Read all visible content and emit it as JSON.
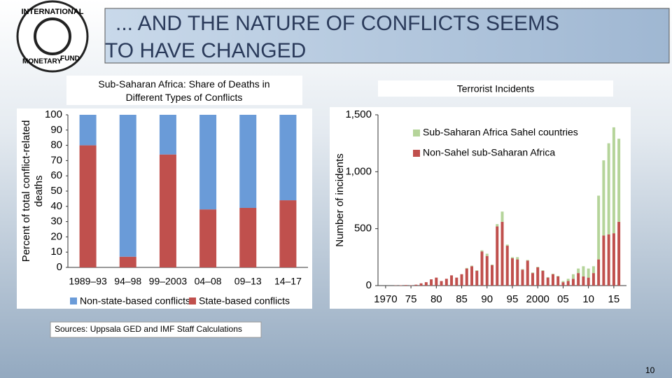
{
  "slide": {
    "title": [
      "... AND THE NATURE OF CONFLICTS SEEMS",
      "TO HAVE CHANGED"
    ],
    "logo_text": [
      "INTERNATIONAL",
      "MONETARY",
      "FUND"
    ],
    "source": "Sources: Uppsala GED and IMF Staff Calculations",
    "page_number": "10"
  },
  "chart_data": [
    {
      "type": "stacked_bar",
      "title": "Sub-Saharan Africa: Share of Deaths in Different Types of Conflicts",
      "ylabel": [
        "Percent of total conflict-related",
        "deaths"
      ],
      "categories": [
        "1989–93",
        "94–98",
        "99–2003",
        "04–08",
        "09–13",
        "14–17"
      ],
      "series": [
        {
          "name": "State-based conflicts",
          "color": "#c0504d",
          "values": [
            80,
            7,
            74,
            38,
            39,
            44
          ]
        },
        {
          "name": "Non-state-based conflicts",
          "color": "#6a9bd8",
          "values": [
            20,
            93,
            26,
            62,
            61,
            56
          ]
        }
      ],
      "ylim": [
        0,
        100
      ],
      "yticks": [
        0,
        10,
        20,
        30,
        40,
        50,
        60,
        70,
        80,
        90,
        100
      ],
      "legend": "bottom"
    },
    {
      "type": "stacked_bar_x",
      "title": "Terrorist Incidents",
      "ylabel": "Number of incidents",
      "x": [
        1970,
        1971,
        1972,
        1973,
        1974,
        1975,
        1976,
        1977,
        1978,
        1979,
        1980,
        1981,
        1982,
        1983,
        1984,
        1985,
        1986,
        1987,
        1988,
        1989,
        1990,
        1991,
        1992,
        1993,
        1994,
        1995,
        1996,
        1997,
        1998,
        1999,
        2000,
        2001,
        2002,
        2003,
        2004,
        2005,
        2006,
        2007,
        2008,
        2009,
        2010,
        2011,
        2012,
        2013,
        2014,
        2015,
        2016
      ],
      "series": [
        {
          "name": "Non-Sahel sub-Saharan Africa",
          "color": "#c0504d",
          "values": [
            0,
            0,
            2,
            3,
            5,
            3,
            8,
            20,
            30,
            55,
            70,
            40,
            60,
            90,
            70,
            100,
            150,
            170,
            130,
            300,
            260,
            180,
            520,
            560,
            350,
            240,
            230,
            140,
            220,
            110,
            160,
            130,
            70,
            100,
            80,
            30,
            40,
            60,
            110,
            80,
            70,
            110,
            230,
            440,
            450,
            460,
            560
          ]
        },
        {
          "name": "Sub-Saharan Africa Sahel countries",
          "color": "#b5d49a",
          "values": [
            0,
            0,
            0,
            0,
            0,
            0,
            0,
            0,
            0,
            0,
            0,
            0,
            0,
            0,
            0,
            0,
            5,
            5,
            5,
            10,
            20,
            5,
            20,
            90,
            10,
            10,
            20,
            5,
            5,
            5,
            5,
            5,
            5,
            5,
            5,
            10,
            20,
            40,
            40,
            90,
            80,
            60,
            560,
            660,
            800,
            930,
            730
          ]
        }
      ],
      "xlim": [
        1968.5,
        2017.5
      ],
      "xticks": [
        1970,
        {
          "value": 1975,
          "label": "75"
        },
        {
          "value": 1980,
          "label": "80"
        },
        {
          "value": 1985,
          "label": "85"
        },
        {
          "value": 1990,
          "label": "90"
        },
        {
          "value": 1995,
          "label": "95"
        },
        2000,
        {
          "value": 2005,
          "label": "05"
        },
        {
          "value": 2010,
          "label": "10"
        },
        {
          "value": 2015,
          "label": "15"
        }
      ],
      "ylim": [
        0,
        1500
      ],
      "yticks": [
        0,
        500,
        {
          "value": 1000,
          "label": "1,000"
        },
        {
          "value": 1500,
          "label": "1,500"
        }
      ],
      "legend": "upper left"
    }
  ]
}
